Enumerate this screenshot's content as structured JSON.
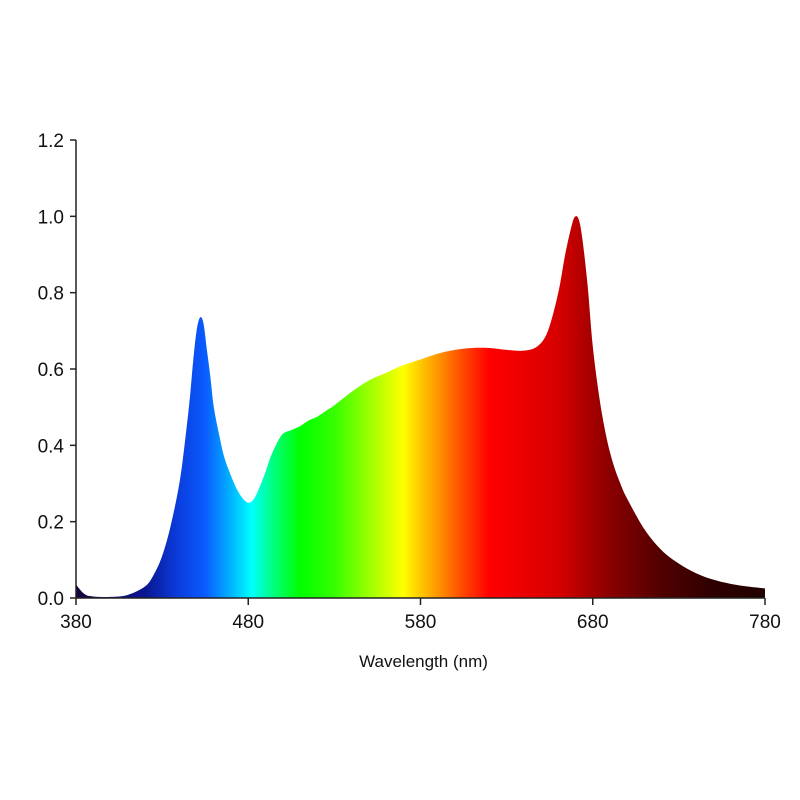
{
  "chart_data": {
    "type": "area",
    "title": "",
    "xlabel": "Wavelength (nm)",
    "ylabel": "",
    "xlim": [
      380,
      780
    ],
    "ylim": [
      0,
      1.2
    ],
    "xticks": [
      380,
      480,
      580,
      680,
      780
    ],
    "xtick_labels": [
      "380",
      "480",
      "580",
      "680",
      "780"
    ],
    "yticks": [
      0,
      0.2,
      0.4,
      0.6,
      0.8,
      1.0,
      1.2
    ],
    "ytick_labels": [
      "0.0",
      "0.2",
      "0.4",
      "0.6",
      "0.8",
      "1.0",
      "1.2"
    ],
    "grid": false,
    "fill": "visible-spectrum gradient (violet → blue → cyan → green → yellow → orange → red → dark red)",
    "series": [
      {
        "x": [
          380,
          385,
          390,
          400,
          410,
          420,
          425,
          430,
          435,
          440,
          443,
          446,
          448,
          450,
          452,
          454,
          456,
          458,
          460,
          463,
          466,
          470,
          474,
          478,
          481,
          484,
          487,
          490,
          493,
          496,
          500,
          505,
          510,
          515,
          520,
          525,
          530,
          540,
          550,
          560,
          570,
          580,
          590,
          600,
          610,
          620,
          630,
          640,
          648,
          654,
          660,
          664,
          668,
          670,
          672,
          674,
          677,
          680,
          684,
          688,
          692,
          696,
          700,
          710,
          720,
          730,
          740,
          750,
          760,
          770,
          780
        ],
        "y": [
          0.035,
          0.01,
          0.004,
          0.003,
          0.008,
          0.03,
          0.06,
          0.11,
          0.19,
          0.3,
          0.4,
          0.52,
          0.62,
          0.7,
          0.735,
          0.72,
          0.65,
          0.58,
          0.5,
          0.43,
          0.37,
          0.32,
          0.28,
          0.255,
          0.25,
          0.265,
          0.295,
          0.33,
          0.37,
          0.4,
          0.43,
          0.44,
          0.45,
          0.465,
          0.475,
          0.49,
          0.505,
          0.54,
          0.57,
          0.59,
          0.61,
          0.625,
          0.64,
          0.65,
          0.655,
          0.655,
          0.65,
          0.648,
          0.66,
          0.7,
          0.8,
          0.9,
          0.98,
          1.0,
          0.99,
          0.94,
          0.82,
          0.66,
          0.52,
          0.42,
          0.35,
          0.3,
          0.26,
          0.18,
          0.125,
          0.09,
          0.065,
          0.048,
          0.037,
          0.03,
          0.025
        ]
      }
    ],
    "gradient_stops": [
      {
        "wavelength": 380,
        "color": "#15003a"
      },
      {
        "wavelength": 400,
        "color": "#0a0a70"
      },
      {
        "wavelength": 420,
        "color": "#0a1690"
      },
      {
        "wavelength": 440,
        "color": "#0b3ee0"
      },
      {
        "wavelength": 455,
        "color": "#0a5cff"
      },
      {
        "wavelength": 470,
        "color": "#00b4ff"
      },
      {
        "wavelength": 482,
        "color": "#00ffff"
      },
      {
        "wavelength": 495,
        "color": "#00ff7a"
      },
      {
        "wavelength": 510,
        "color": "#00ff00"
      },
      {
        "wavelength": 530,
        "color": "#36ff00"
      },
      {
        "wavelength": 555,
        "color": "#b5ff00"
      },
      {
        "wavelength": 570,
        "color": "#ffff00"
      },
      {
        "wavelength": 580,
        "color": "#ffc800"
      },
      {
        "wavelength": 590,
        "color": "#ff9600"
      },
      {
        "wavelength": 605,
        "color": "#ff4600"
      },
      {
        "wavelength": 620,
        "color": "#ff0000"
      },
      {
        "wavelength": 660,
        "color": "#d60000"
      },
      {
        "wavelength": 690,
        "color": "#8a0000"
      },
      {
        "wavelength": 720,
        "color": "#500000"
      },
      {
        "wavelength": 750,
        "color": "#2e0000"
      },
      {
        "wavelength": 780,
        "color": "#220000"
      }
    ]
  }
}
